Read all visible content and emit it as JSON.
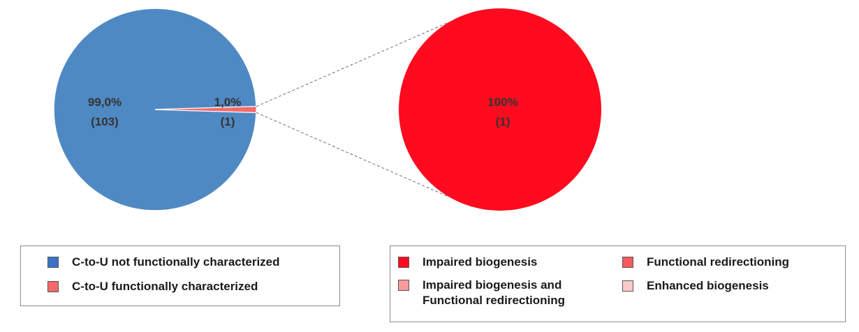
{
  "colors": {
    "blue": "#4f89c4",
    "small_red": "#f46a6a",
    "bright_red": "#ff0a1e",
    "salmon": "#f89a9a",
    "coral": "#f7595e",
    "pink": "#fcc9c9",
    "swatch_blue": "#3b73c2"
  },
  "chart_data": [
    {
      "type": "pie",
      "title": "",
      "slices": [
        {
          "name": "C-to-U not functionally characterized",
          "value": 103,
          "percent_label": "99,0%",
          "count_label": "(103)",
          "color": "#4f89c4"
        },
        {
          "name": "C-to-U functionally characterized",
          "value": 1,
          "percent_label": "1,0%",
          "count_label": "(1)",
          "color": "#f46a6a"
        }
      ],
      "legend_position": "bottom-left"
    },
    {
      "type": "pie",
      "title": "",
      "slices": [
        {
          "name": "Impaired biogenesis",
          "value": 1,
          "percent_label": "100%",
          "count_label": "(1)",
          "color": "#ff0a1e"
        },
        {
          "name": "Impaired biogenesis and Functional redirectioning",
          "value": 0,
          "color": "#f89a9a"
        },
        {
          "name": "Functional redirectioning",
          "value": 0,
          "color": "#f7595e"
        },
        {
          "name": "Enhanced biogenesis",
          "value": 0,
          "color": "#fcc9c9"
        }
      ],
      "legend_position": "bottom-right"
    }
  ],
  "legend_left": [
    {
      "label": "C-to-U not functionally characterized",
      "color": "#3b73c2"
    },
    {
      "label": "C-to-U functionally characterized",
      "color": "#f46a6a"
    }
  ],
  "legend_right": [
    {
      "label": "Impaired biogenesis",
      "color": "#ff0a1e"
    },
    {
      "label": "Functional redirectioning",
      "color": "#f7595e"
    },
    {
      "label": "Impaired biogenesis and\nFunctional redirectioning",
      "color": "#f89a9a"
    },
    {
      "label": "Enhanced biogenesis",
      "color": "#fcc9c9"
    }
  ]
}
